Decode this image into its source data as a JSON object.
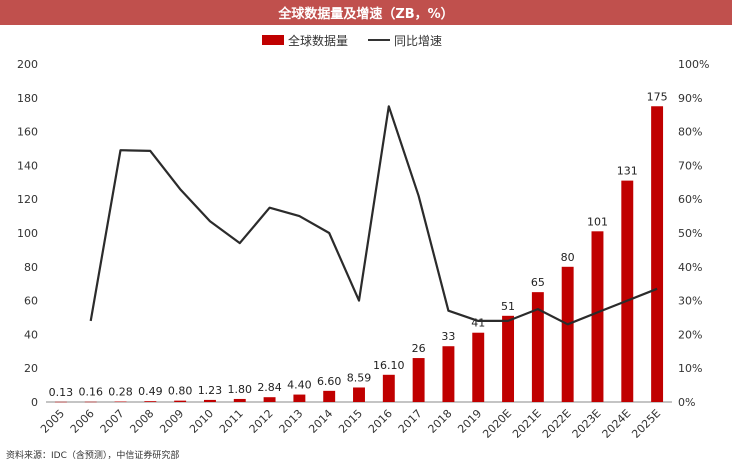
{
  "chart_data": {
    "type": "bar+line",
    "title": "全球数据量及增速（ZB，%）",
    "categories": [
      "2005",
      "2006",
      "2007",
      "2008",
      "2009",
      "2010",
      "2011",
      "2012",
      "2013",
      "2014",
      "2015",
      "2016",
      "2017",
      "2018",
      "2019",
      "2020E",
      "2021E",
      "2022E",
      "2023E",
      "2024E",
      "2025E"
    ],
    "series": [
      {
        "name": "全球数据量",
        "type": "bar",
        "axis": "left",
        "color": "#c00000",
        "values": [
          0.13,
          0.16,
          0.28,
          0.49,
          0.8,
          1.23,
          1.8,
          2.84,
          4.4,
          6.6,
          8.59,
          16.1,
          26,
          33,
          41,
          51,
          65,
          80,
          101,
          131,
          175
        ],
        "labels": [
          "0.13",
          "0.16",
          "0.28",
          "0.49",
          "0.80",
          "1.23",
          "1.80",
          "2.84",
          "4.40",
          "6.60",
          "8.59",
          "16.10",
          "26",
          "33",
          "41",
          "51",
          "65",
          "80",
          "101",
          "131",
          "175"
        ]
      },
      {
        "name": "同比增速",
        "type": "line",
        "axis": "right",
        "color": "#2b2b2b",
        "values": [
          null,
          24,
          74.5,
          74.3,
          63,
          53.5,
          47,
          57.5,
          55,
          50,
          30,
          87.5,
          61,
          27,
          24,
          24,
          27.5,
          23,
          26.5,
          30,
          33.5
        ]
      }
    ],
    "ylim_left": [
      0,
      200
    ],
    "yticks_left": [
      0,
      20,
      40,
      60,
      80,
      100,
      120,
      140,
      160,
      180,
      200
    ],
    "ylim_right": [
      0,
      100
    ],
    "yticks_right": [
      "0%",
      "10%",
      "20%",
      "30%",
      "40%",
      "50%",
      "60%",
      "70%",
      "80%",
      "90%",
      "100%"
    ],
    "legend_position": "top-center",
    "source": "资料来源：IDC（含预测），中信证券研究部"
  }
}
